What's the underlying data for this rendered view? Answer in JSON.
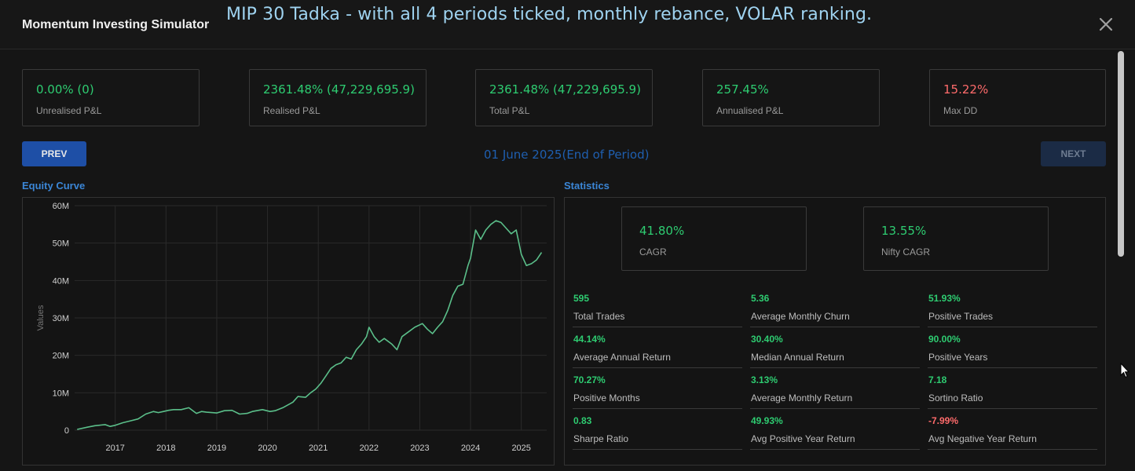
{
  "header": {
    "app_title": "Momentum Investing Simulator",
    "overlay_title": "MIP 30 Tadka - with all 4 periods ticked, monthly rebance, VOLAR ranking.",
    "close_icon": "close-icon"
  },
  "kpis": [
    {
      "value": "0.00% (0)",
      "label": "Unrealised P&L",
      "status": "positive"
    },
    {
      "value": "2361.48% (47,229,695.9)",
      "label": "Realised P&L",
      "status": "positive"
    },
    {
      "value": "2361.48% (47,229,695.9)",
      "label": "Total P&L",
      "status": "positive"
    },
    {
      "value": "257.45%",
      "label": "Annualised P&L",
      "status": "positive"
    },
    {
      "value": "15.22%",
      "label": "Max DD",
      "status": "negative"
    }
  ],
  "nav": {
    "prev_label": "PREV",
    "next_label": "NEXT",
    "period_label": "01 June 2025(End of Period)"
  },
  "equity": {
    "title": "Equity Curve"
  },
  "statistics": {
    "title": "Statistics",
    "cagr": {
      "value": "41.80%",
      "label": "CAGR"
    },
    "nifty_cagr": {
      "value": "13.55%",
      "label": "Nifty CAGR"
    },
    "items": [
      {
        "value": "595",
        "label": "Total Trades"
      },
      {
        "value": "5.36",
        "label": "Average Monthly Churn"
      },
      {
        "value": "51.93%",
        "label": "Positive Trades"
      },
      {
        "value": "44.14%",
        "label": "Average Annual Return"
      },
      {
        "value": "30.40%",
        "label": "Median Annual Return"
      },
      {
        "value": "90.00%",
        "label": "Positive Years"
      },
      {
        "value": "70.27%",
        "label": "Positive Months"
      },
      {
        "value": "3.13%",
        "label": "Average Monthly Return"
      },
      {
        "value": "7.18",
        "label": "Sortino Ratio"
      },
      {
        "value": "0.83",
        "label": "Sharpe Ratio"
      },
      {
        "value": "49.93%",
        "label": "Avg Positive Year Return"
      },
      {
        "value": "-7.99%",
        "label": "Avg Negative Year Return"
      }
    ]
  },
  "colors": {
    "positive": "#2ecc71",
    "negative": "#ff6b6b",
    "accent": "#3b86d6",
    "line": "#5bbf8a"
  },
  "chart_data": {
    "type": "line",
    "title": "",
    "xlabel": "",
    "ylabel": "Values",
    "xlim": [
      2016.2,
      2025.5
    ],
    "ylim": [
      0,
      60
    ],
    "x_ticks": [
      "2017",
      "2018",
      "2019",
      "2020",
      "2021",
      "2022",
      "2023",
      "2024",
      "2025"
    ],
    "x_tick_values": [
      2017,
      2018,
      2019,
      2020,
      2021,
      2022,
      2023,
      2024,
      2025
    ],
    "y_ticks": [
      "0",
      "10M",
      "20M",
      "30M",
      "40M",
      "50M",
      "60M"
    ],
    "y_tick_values": [
      0,
      10,
      20,
      30,
      40,
      50,
      60
    ],
    "y_unit": "M",
    "grid": true,
    "series": [
      {
        "x": [
          2016.25,
          2016.45,
          2016.6,
          2016.8,
          2016.9,
          2017.0,
          2017.15,
          2017.3,
          2017.45,
          2017.6,
          2017.75,
          2017.85,
          2017.95,
          2018.05,
          2018.15,
          2018.3,
          2018.45,
          2018.6,
          2018.7,
          2018.8,
          2018.9,
          2019.0,
          2019.15,
          2019.3,
          2019.45,
          2019.6,
          2019.7,
          2019.9,
          2020.05,
          2020.15,
          2020.3,
          2020.5,
          2020.6,
          2020.75,
          2020.85,
          2020.95,
          2021.05,
          2021.15,
          2021.25,
          2021.35,
          2021.45,
          2021.55,
          2021.65,
          2021.75,
          2021.85,
          2021.95,
          2022.0,
          2022.1,
          2022.2,
          2022.3,
          2022.45,
          2022.55,
          2022.65,
          2022.8,
          2022.9,
          2023.05,
          2023.15,
          2023.25,
          2023.35,
          2023.45,
          2023.55,
          2023.65,
          2023.75,
          2023.85,
          2023.95,
          2024.0,
          2024.1,
          2024.2,
          2024.3,
          2024.4,
          2024.5,
          2024.6,
          2024.7,
          2024.8,
          2024.9,
          2025.0,
          2025.1,
          2025.2,
          2025.3,
          2025.4
        ],
        "y": [
          0.2,
          0.8,
          1.2,
          1.5,
          1.0,
          1.3,
          2.0,
          2.5,
          3.0,
          4.3,
          5.0,
          4.7,
          5.0,
          5.3,
          5.5,
          5.5,
          6.0,
          4.5,
          5.0,
          4.8,
          4.7,
          4.6,
          5.2,
          5.3,
          4.3,
          4.5,
          5.0,
          5.5,
          5.0,
          5.2,
          6.0,
          7.5,
          9.0,
          8.8,
          10.0,
          11.0,
          12.5,
          14.5,
          16.5,
          17.5,
          18.0,
          19.5,
          19.0,
          21.5,
          23.0,
          25.0,
          27.5,
          25.0,
          23.5,
          24.5,
          23.0,
          21.5,
          25.0,
          26.5,
          27.5,
          28.5,
          27.0,
          25.8,
          27.5,
          29.0,
          32.0,
          36.0,
          38.5,
          39.0,
          44.0,
          46.0,
          53.5,
          51.0,
          53.5,
          55.0,
          56.0,
          55.5,
          54.0,
          52.5,
          53.5,
          47.0,
          44.0,
          44.5,
          45.5,
          47.5
        ]
      }
    ]
  }
}
